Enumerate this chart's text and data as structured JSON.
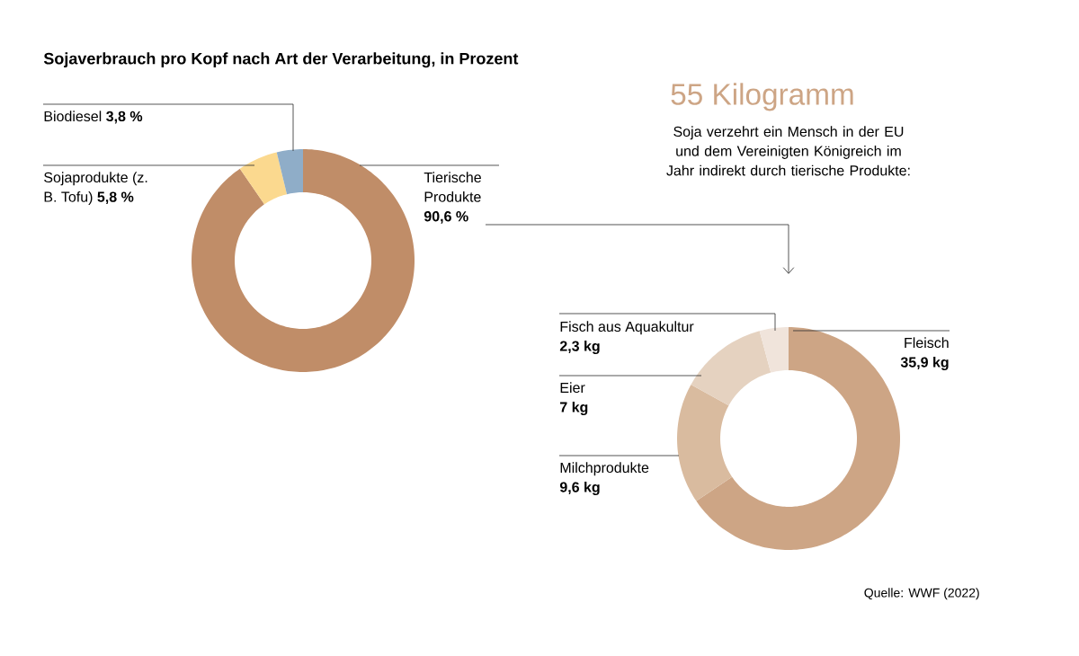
{
  "chart_data": [
    {
      "type": "donut",
      "title": "Sojaverbrauch pro Kopf nach Art der Verarbeitung, in Prozent",
      "categories": [
        "Tierische Produkte",
        "Sojaprodukte (z. B. Tofu)",
        "Biodiesel"
      ],
      "values": [
        90.6,
        5.8,
        3.8
      ],
      "colors": [
        "#c08d68",
        "#fbd98f",
        "#8fadc8"
      ],
      "value_labels": [
        "90,6 %",
        "5,8 %",
        "3,8 %"
      ]
    },
    {
      "type": "donut",
      "title": "55 Kilogramm",
      "subtitle": "Soja verzehrt ein Mensch in der EU und dem Vereinigten Königreich im Jahr indirekt durch tierische Produkte:",
      "categories": [
        "Fleisch",
        "Milchprodukte",
        "Eier",
        "Fisch aus Aquakultur"
      ],
      "values": [
        35.9,
        9.6,
        7,
        2.3
      ],
      "colors": [
        "#cda585",
        "#d9bb9f",
        "#e5d2c0",
        "#f0e4db"
      ],
      "value_labels": [
        "35,9 kg",
        "9,6 kg",
        "7 kg",
        "2,3 kg"
      ],
      "annotations": [
        "Quelle: WWF (2022)"
      ]
    }
  ]
}
